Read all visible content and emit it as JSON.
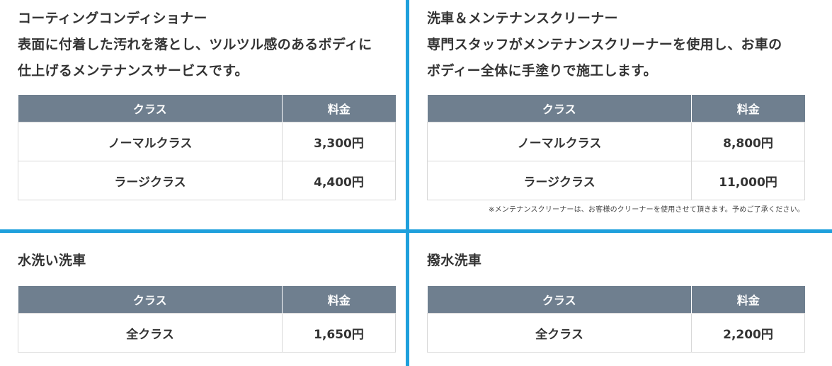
{
  "sections": [
    {
      "title_lines": [
        "コーティングコンディショナー",
        "表面に付着した汚れを落とし、ツルツル感のあるボディに",
        "仕上げるメンテナンスサービスです。"
      ],
      "headers": [
        "クラス",
        "料金"
      ],
      "rows": [
        [
          "ノーマルクラス",
          "3,300円"
        ],
        [
          "ラージクラス",
          "4,400円"
        ]
      ]
    },
    {
      "title_lines": [
        "洗車＆メンテナンスクリーナー",
        "専門スタッフがメンテナンスクリーナーを使用し、お車の",
        "ボディー全体に手塗りで施工します。"
      ],
      "headers": [
        "クラス",
        "料金"
      ],
      "rows": [
        [
          "ノーマルクラス",
          "8,800円"
        ],
        [
          "ラージクラス",
          "11,000円"
        ]
      ],
      "note": "※メンテナンスクリーナーは、お客様のクリーナーを使用させて頂きます。予めご了承ください。"
    },
    {
      "title_lines": [
        "水洗い洗車"
      ],
      "headers": [
        "クラス",
        "料金"
      ],
      "rows": [
        [
          "全クラス",
          "1,650円"
        ]
      ]
    },
    {
      "title_lines": [
        "撥水洗車"
      ],
      "headers": [
        "クラス",
        "料金"
      ],
      "rows": [
        [
          "全クラス",
          "2,200円"
        ]
      ]
    }
  ],
  "colors": {
    "divider": "#1ea0dc",
    "table_header_bg": "#6f7f8f",
    "table_header_text": "#ffffff",
    "border": "#d8d8d8",
    "text": "#333333"
  }
}
